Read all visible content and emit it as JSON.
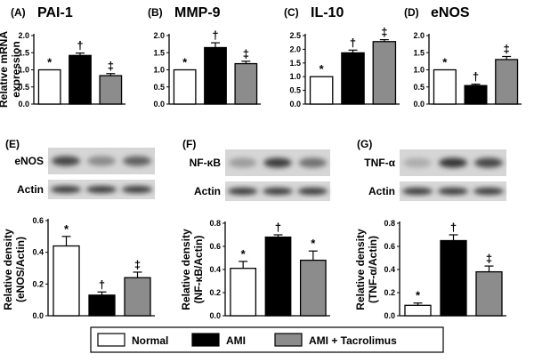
{
  "legend": {
    "items": [
      {
        "label": "Normal",
        "color": "#ffffff"
      },
      {
        "label": "AMI",
        "color": "#000000"
      },
      {
        "label": "AMI + Tacrolimus",
        "color": "#8c8c8c"
      }
    ]
  },
  "colors": {
    "bar_stroke": "#000000"
  },
  "ylabels": {
    "mrna": [
      "Relative mRNA",
      "expression"
    ],
    "e": [
      "Relative density",
      "(eNOS/Actin)"
    ],
    "f": [
      "Relative density",
      "(NF-κB/Actin)"
    ],
    "g": [
      "Relative density",
      "(TNF-α/Actin)"
    ]
  },
  "chart_data": [
    {
      "id": "A",
      "letter": "(A)",
      "title": "PAI-1",
      "type": "bar",
      "ylim": [
        0,
        2.0
      ],
      "yticks": [
        "0.0",
        "0.5",
        "1.0",
        "1.5",
        "2.0"
      ],
      "tickvals": [
        0,
        0.5,
        1.0,
        1.5,
        2.0
      ],
      "categories": [
        "Normal",
        "AMI",
        "AMI + Tacrolimus"
      ],
      "values": [
        1.0,
        1.42,
        0.83
      ],
      "errors": [
        0,
        0.07,
        0.06
      ],
      "marks": [
        "*",
        "†",
        "‡"
      ]
    },
    {
      "id": "B",
      "letter": "(B)",
      "title": "MMP-9",
      "type": "bar",
      "ylim": [
        0,
        2.0
      ],
      "yticks": [
        "0.0",
        "0.5",
        "1.0",
        "1.5",
        "2.0"
      ],
      "tickvals": [
        0,
        0.5,
        1.0,
        1.5,
        2.0
      ],
      "categories": [
        "Normal",
        "AMI",
        "AMI + Tacrolimus"
      ],
      "values": [
        1.0,
        1.65,
        1.18
      ],
      "errors": [
        0,
        0.14,
        0.07
      ],
      "marks": [
        "*",
        "†",
        "‡"
      ]
    },
    {
      "id": "C",
      "letter": "(C)",
      "title": "IL-10",
      "type": "bar",
      "ylim": [
        0,
        2.5
      ],
      "yticks": [
        "0.0",
        "0.5",
        "1.0",
        "1.5",
        "2.0",
        "2.5"
      ],
      "tickvals": [
        0,
        0.5,
        1.0,
        1.5,
        2.0,
        2.5
      ],
      "categories": [
        "Normal",
        "AMI",
        "AMI + Tacrolimus"
      ],
      "values": [
        1.0,
        1.87,
        2.28
      ],
      "errors": [
        0,
        0.1,
        0.07
      ],
      "marks": [
        "*",
        "†",
        "‡"
      ]
    },
    {
      "id": "D",
      "letter": "(D)",
      "title": "eNOS",
      "type": "bar",
      "ylim": [
        0,
        2.0
      ],
      "yticks": [
        "0.0",
        "0.5",
        "1.0",
        "1.5",
        "2.0"
      ],
      "tickvals": [
        0,
        0.5,
        1.0,
        1.5,
        2.0
      ],
      "categories": [
        "Normal",
        "AMI",
        "AMI + Tacrolimus"
      ],
      "values": [
        1.0,
        0.54,
        1.3
      ],
      "errors": [
        0,
        0.04,
        0.09
      ],
      "marks": [
        "*",
        "†",
        "‡"
      ]
    },
    {
      "id": "E",
      "letter": "(E)",
      "title": "",
      "type": "bar",
      "ylim": [
        0,
        0.6
      ],
      "yticks": [
        "0.0",
        "0.2",
        "0.4",
        "0.6"
      ],
      "tickvals": [
        0,
        0.2,
        0.4,
        0.6
      ],
      "categories": [
        "Normal",
        "AMI",
        "AMI + Tacrolimus"
      ],
      "values": [
        0.44,
        0.13,
        0.24
      ],
      "errors": [
        0.06,
        0.02,
        0.035
      ],
      "marks": [
        "*",
        "†",
        "‡"
      ],
      "blot": {
        "label": "eNOS",
        "actin": "Actin",
        "intensity": [
          0.85,
          0.45,
          0.7
        ]
      }
    },
    {
      "id": "F",
      "letter": "(F)",
      "title": "",
      "type": "bar",
      "ylim": [
        0,
        0.8
      ],
      "yticks": [
        "0.0",
        "0.2",
        "0.4",
        "0.6",
        "0.8"
      ],
      "tickvals": [
        0,
        0.2,
        0.4,
        0.6,
        0.8
      ],
      "categories": [
        "Normal",
        "AMI",
        "AMI + Tacrolimus"
      ],
      "values": [
        0.41,
        0.68,
        0.48
      ],
      "errors": [
        0.06,
        0.02,
        0.08
      ],
      "marks": [
        "*",
        "†",
        "*"
      ],
      "blot": {
        "label": "NF-κB",
        "actin": "Actin",
        "intensity": [
          0.35,
          0.9,
          0.6
        ]
      }
    },
    {
      "id": "G",
      "letter": "(G)",
      "title": "",
      "type": "bar",
      "ylim": [
        0,
        0.8
      ],
      "yticks": [
        "0.0",
        "0.2",
        "0.4",
        "0.6",
        "0.8"
      ],
      "tickvals": [
        0,
        0.2,
        0.4,
        0.6,
        0.8
      ],
      "categories": [
        "Normal",
        "AMI",
        "AMI + Tacrolimus"
      ],
      "values": [
        0.09,
        0.65,
        0.38
      ],
      "errors": [
        0.02,
        0.05,
        0.05
      ],
      "marks": [
        "*",
        "†",
        "‡"
      ],
      "blot": {
        "label": "TNF-α",
        "actin": "Actin",
        "intensity": [
          0.25,
          0.95,
          0.85
        ]
      }
    }
  ]
}
